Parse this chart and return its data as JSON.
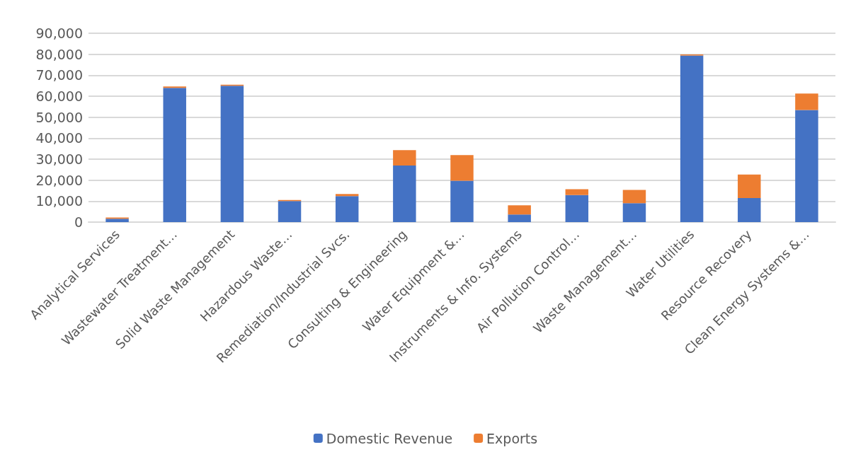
{
  "chart_data": {
    "type": "bar",
    "stacked": true,
    "categories": [
      "Analytical Services",
      "Wastewater Treatment…",
      "Solid Waste Management",
      "Hazardous Waste…",
      "Remediation/Industrial Svcs.",
      "Consulting & Engineering",
      "Water Equipment &…",
      "Instruments & Info. Systems",
      "Air Pollution Control…",
      "Waste Management…",
      "Water Utilities",
      "Resource Recovery",
      "Clean Energy Systems &…"
    ],
    "series": [
      {
        "name": "Domestic Revenue",
        "color": "#4472c4",
        "values": [
          1600,
          64000,
          65000,
          10000,
          12400,
          27000,
          19700,
          3600,
          12900,
          9000,
          79400,
          11500,
          53400
        ]
      },
      {
        "name": "Exports",
        "color": "#ed7d31",
        "values": [
          600,
          600,
          500,
          500,
          1000,
          7300,
          12200,
          4400,
          2800,
          6300,
          500,
          11200,
          7900
        ]
      }
    ],
    "ylim": [
      0,
      90000
    ],
    "yticks": [
      0,
      {
        "value": 10000,
        "label": "10,000"
      },
      {
        "value": 20000,
        "label": "20,000"
      },
      {
        "value": 30000,
        "label": "30,000"
      },
      {
        "value": 40000,
        "label": "40,000"
      },
      {
        "value": 50000,
        "label": "50,000"
      },
      {
        "value": 60000,
        "label": "60,000"
      },
      {
        "value": 70000,
        "label": "70,000"
      },
      {
        "value": 80000,
        "label": "80,000"
      },
      {
        "value": 90000,
        "label": "90,000"
      }
    ],
    "grid": "y",
    "legend": "bottom"
  }
}
